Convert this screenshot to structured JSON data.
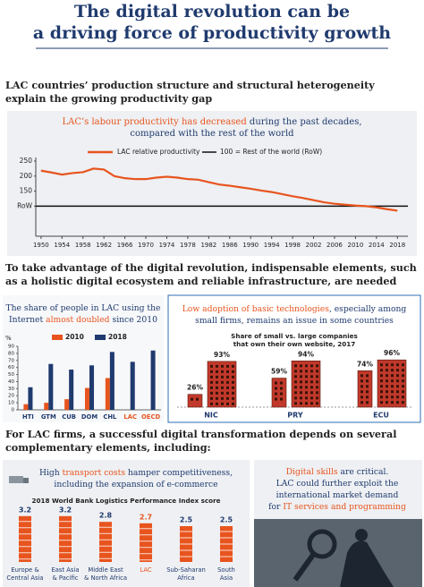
{
  "header": {
    "title_lines": [
      "The digital revolution can be",
      "a driving force of productivity growth"
    ]
  },
  "sections": [
    {
      "heading_lines": [
        "LAC countries’ production structure and structural heterogeneity",
        "explain the growing productivity gap"
      ]
    },
    {
      "heading_lines": [
        "To take advantage of the digital revolution, indispensable elements, such",
        "as a holistic digital ecosystem and reliable infrastructure, are needed"
      ]
    },
    {
      "heading_lines": [
        "For LAC firms, a successful digital transformation depends on several",
        "complementary elements, including:"
      ]
    }
  ],
  "chart_data": [
    {
      "type": "line",
      "caption_lines": [
        [
          {
            "text": "LAC’s labour productivity has decreased",
            "color": "#e8541e"
          },
          {
            "text": " during the past decades,",
            "color": "#1f3a6e"
          }
        ],
        [
          {
            "text": "compared with the rest of the world",
            "color": "#1f3a6e"
          }
        ]
      ],
      "x": [
        1950,
        1952,
        1954,
        1956,
        1958,
        1960,
        1962,
        1964,
        1966,
        1968,
        1970,
        1972,
        1974,
        1976,
        1978,
        1980,
        1982,
        1984,
        1986,
        1988,
        1990,
        1992,
        1994,
        1996,
        1998,
        2000,
        2002,
        2004,
        2006,
        2008,
        2010,
        2012,
        2014,
        2016,
        2018
      ],
      "series": [
        {
          "name": "LAC relative productivity",
          "color": "#e8541e",
          "values": [
            218,
            212,
            205,
            210,
            213,
            225,
            222,
            200,
            193,
            190,
            190,
            195,
            198,
            195,
            190,
            188,
            180,
            172,
            168,
            163,
            158,
            152,
            147,
            140,
            133,
            127,
            120,
            113,
            108,
            105,
            102,
            100,
            96,
            90,
            85
          ]
        }
      ],
      "reference": {
        "label": "100 = Rest of the world (RoW)",
        "value": 100,
        "color": "#111111"
      },
      "xlim": [
        1949,
        2020
      ],
      "xticks": [
        1950,
        1954,
        1958,
        1962,
        1966,
        1970,
        1974,
        1978,
        1982,
        1986,
        1990,
        1994,
        1998,
        2002,
        2006,
        2010,
        2014,
        2018
      ],
      "ylim": [
        0,
        250
      ],
      "yticks": [
        {
          "value": 100,
          "label": "RoW"
        },
        150,
        200,
        250
      ]
    },
    {
      "type": "bar",
      "caption_lines": [
        [
          {
            "text": "The share of people in LAC using the",
            "color": "#1f3a6e"
          }
        ],
        [
          {
            "text": "Internet ",
            "color": "#1f3a6e"
          },
          {
            "text": "almost doubled",
            "color": "#e8541e"
          },
          {
            "text": " since 2010",
            "color": "#1f3a6e"
          }
        ]
      ],
      "y_label": "%",
      "categories": [
        "HTI",
        "GTM",
        "CUB",
        "DOM",
        "CHL",
        "LAC",
        "OECD"
      ],
      "category_label_colors": [
        "#1f3a6e",
        "#1f3a6e",
        "#1f3a6e",
        "#1f3a6e",
        "#1f3a6e",
        "#e8541e",
        "#e8541e"
      ],
      "series": [
        {
          "name": "2010",
          "color": "#e8541e",
          "values": [
            8,
            10,
            15,
            31,
            45,
            null,
            null
          ]
        },
        {
          "name": "2018",
          "color": "#1f3a6e",
          "values": [
            32,
            65,
            57,
            63,
            82,
            68,
            84
          ]
        }
      ],
      "ylim": [
        0,
        90
      ],
      "yticks": [
        0,
        10,
        20,
        30,
        40,
        50,
        60,
        70,
        80,
        90
      ]
    },
    {
      "type": "pictogram",
      "caption_lines": [
        [
          {
            "text": "Low adoption of basic technologies",
            "color": "#e8541e"
          },
          {
            "text": ", especially among",
            "color": "#1f3a6e"
          }
        ],
        [
          {
            "text": "small firms, remains an issue in some countries",
            "color": "#1f3a6e"
          }
        ]
      ],
      "title_lines": [
        "Share of small vs. large companies",
        "that own their own website, 2017"
      ],
      "categories": [
        "NIC",
        "PRY",
        "ECU"
      ],
      "series": [
        {
          "color": "#c0392b",
          "values": [
            26,
            59,
            74
          ],
          "value_labels": [
            "26%",
            "59%",
            "74%"
          ]
        },
        {
          "color": "#c0392b",
          "values": [
            93,
            94,
            96
          ],
          "value_labels": [
            "93%",
            "94%",
            "96%"
          ]
        }
      ]
    },
    {
      "type": "pictogram_bar",
      "caption_lines": [
        [
          {
            "text": "High ",
            "color": "#1f3a6e"
          },
          {
            "text": "transport costs",
            "color": "#e8541e"
          },
          {
            "text": " hamper competitiveness,",
            "color": "#1f3a6e"
          }
        ],
        [
          {
            "text": "including the expansion of e-commerce",
            "color": "#1f3a6e"
          }
        ]
      ],
      "title": "2018 World Bank Logistics Performance Index score",
      "category_lines": [
        [
          "Europe &",
          "Central Asia"
        ],
        [
          "East Asia",
          "& Pacific"
        ],
        [
          "Middle East",
          "& North Africa"
        ],
        [
          "LAC"
        ],
        [
          "Sub-Saharan",
          "Africa"
        ],
        [
          "South",
          "Asia"
        ]
      ],
      "values": [
        3.2,
        3.2,
        2.8,
        2.7,
        2.5,
        2.5
      ],
      "label_colors": [
        "#1f3a6e",
        "#1f3a6e",
        "#1f3a6e",
        "#e8541e",
        "#1f3a6e",
        "#1f3a6e"
      ],
      "color": "#e8541e"
    }
  ],
  "skills_panel": {
    "lines": [
      [
        {
          "text": "Digital skills",
          "color": "#e8541e"
        },
        {
          "text": " are critical.",
          "color": "#1f3a6e"
        }
      ],
      [
        {
          "text": "LAC could further exploit the",
          "color": "#1f3a6e"
        }
      ],
      [
        {
          "text": "international market demand",
          "color": "#1f3a6e"
        }
      ],
      [
        {
          "text": "for ",
          "color": "#1f3a6e"
        },
        {
          "text": "IT services and programming",
          "color": "#e8541e"
        }
      ]
    ]
  }
}
